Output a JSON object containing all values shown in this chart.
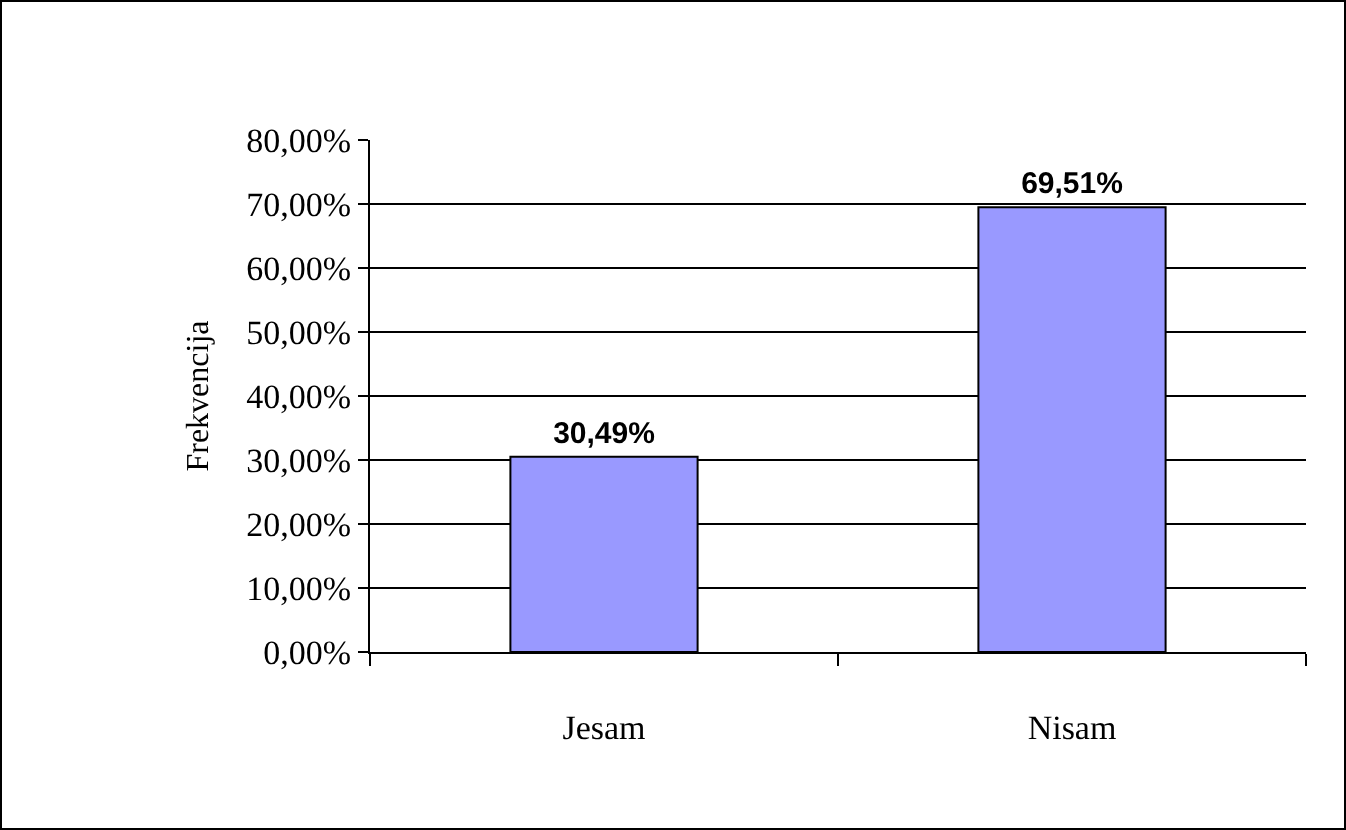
{
  "chart_data": {
    "type": "bar",
    "ylabel": "Frekvencija",
    "categories": [
      "Jesam",
      "Nisam"
    ],
    "values": [
      30.49,
      69.51
    ],
    "value_labels": [
      "30,49%",
      "69,51%"
    ],
    "color": "#9999ff",
    "ylim": [
      0,
      80
    ],
    "yticks": [
      {
        "value": 0,
        "label": "0,00%"
      },
      {
        "value": 10,
        "label": "10,00%"
      },
      {
        "value": 20,
        "label": "20,00%"
      },
      {
        "value": 30,
        "label": "30,00%"
      },
      {
        "value": 40,
        "label": "40,00%"
      },
      {
        "value": 50,
        "label": "50,00%"
      },
      {
        "value": 60,
        "label": "60,00%"
      },
      {
        "value": 70,
        "label": "70,00%"
      },
      {
        "value": 80,
        "label": "80,00%"
      }
    ],
    "grid": "y"
  }
}
